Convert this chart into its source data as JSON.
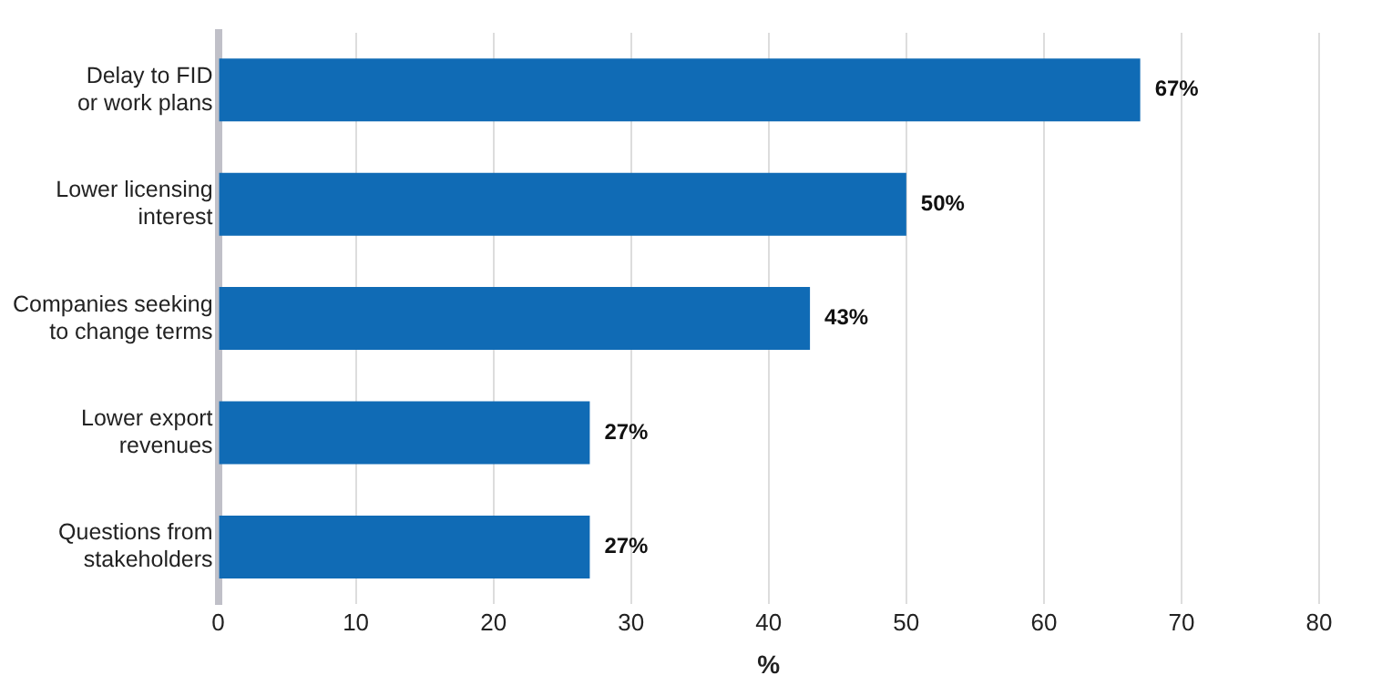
{
  "chart_data": {
    "type": "bar",
    "orientation": "horizontal",
    "xlabel": "%",
    "categories": [
      "Delay to FID\nor work plans",
      "Lower licensing\ninterest",
      "Companies seeking\nto change terms",
      "Lower export\nrevenues",
      "Questions from\nstakeholders"
    ],
    "values": [
      67,
      50,
      43,
      27,
      27
    ],
    "color": "#106bb5",
    "value_labels": [
      "67%",
      "50%",
      "43%",
      "27%",
      "27%"
    ],
    "xlim": [
      0,
      80
    ],
    "xticks": [
      0,
      10,
      20,
      30,
      40,
      50,
      60,
      70,
      80
    ],
    "grid": "x",
    "legend": false
  }
}
